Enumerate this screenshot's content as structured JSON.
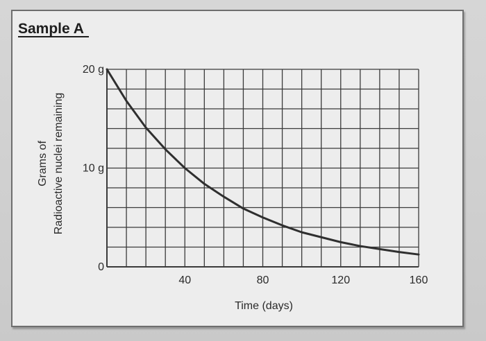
{
  "chart_data": {
    "type": "line",
    "title": "Sample A",
    "xlabel": "Time (days)",
    "ylabel_lines": [
      "Grams of",
      "Radioactive nuclei remaining"
    ],
    "xlim": [
      0,
      160
    ],
    "ylim": [
      0,
      20
    ],
    "x_ticks": [
      {
        "value": 40,
        "label": "40"
      },
      {
        "value": 80,
        "label": "80"
      },
      {
        "value": 120,
        "label": "120"
      },
      {
        "value": 160,
        "label": "160"
      }
    ],
    "y_ticks": [
      {
        "value": 0,
        "label": "0"
      },
      {
        "value": 10,
        "label": "10 g"
      },
      {
        "value": 20,
        "label": "20 g"
      }
    ],
    "grid": true,
    "grid_cols": 16,
    "grid_rows": 10,
    "series": [
      {
        "x": [
          0,
          10,
          20,
          30,
          40,
          50,
          60,
          70,
          80,
          90,
          100,
          110,
          120,
          130,
          140,
          150,
          160
        ],
        "y": [
          20,
          16.8,
          14.1,
          11.9,
          10,
          8.4,
          7.1,
          5.9,
          5,
          4.2,
          3.5,
          3.0,
          2.5,
          2.1,
          1.8,
          1.5,
          1.25
        ]
      }
    ],
    "colors": {
      "curve": "#2f2f2f",
      "grid": "#3a3a3a"
    }
  }
}
